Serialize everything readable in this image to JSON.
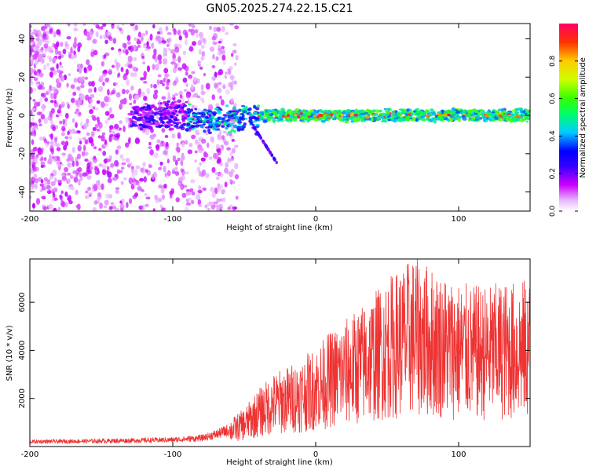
{
  "title": "GN05.2025.274.22.15.C21",
  "chart_data": [
    {
      "type": "heatmap",
      "xlabel": "Height of straight line (km)",
      "ylabel": "Frequency (Hz)",
      "xlim": [
        -200,
        150
      ],
      "ylim": [
        -50,
        48
      ],
      "xticks": [
        "-200",
        "-100",
        "0",
        "100"
      ],
      "xtick_values": [
        -200,
        -100,
        0,
        100
      ],
      "yticks": [
        "-40",
        "-20",
        "0",
        "20",
        "40"
      ],
      "ytick_values": [
        -40,
        -20,
        0,
        20,
        40
      ],
      "colorbar": {
        "label": "Normalized spectral amplitude",
        "range": [
          0,
          1
        ],
        "ticks": [
          "0.0",
          "0.2",
          "0.4",
          "0.6",
          "0.8"
        ],
        "tick_values": [
          0,
          0.2,
          0.4,
          0.6,
          0.8
        ],
        "colors": [
          "#ffffff",
          "#cc00ff",
          "#0000ff",
          "#00ffff",
          "#00ff00",
          "#ffff00",
          "#ff0000",
          "#ff0066"
        ]
      },
      "features": {
        "broadband_noise_region_km": [
          -200,
          -60
        ],
        "signal_band_center_hz": 0,
        "signal_band_start_km": -130,
        "descending_tail_end": {
          "x": -27,
          "y": -25
        }
      }
    },
    {
      "type": "line",
      "xlabel": "Height of straight line (km)",
      "ylabel": "SNR (10 * v/v)",
      "xlim": [
        -200,
        150
      ],
      "ylim": [
        0,
        7800
      ],
      "xticks": [
        "-200",
        "-100",
        "0",
        "100"
      ],
      "xtick_values": [
        -200,
        -100,
        0,
        100
      ],
      "yticks": [
        "2000",
        "4000",
        "6000"
      ],
      "ytick_values": [
        2000,
        4000,
        6000
      ],
      "color": "#ee3333",
      "envelope": [
        {
          "x": -200,
          "y": 200
        },
        {
          "x": -150,
          "y": 230
        },
        {
          "x": -100,
          "y": 280
        },
        {
          "x": -80,
          "y": 350
        },
        {
          "x": -70,
          "y": 500
        },
        {
          "x": -60,
          "y": 700
        },
        {
          "x": -50,
          "y": 1000
        },
        {
          "x": -40,
          "y": 1500
        },
        {
          "x": -30,
          "y": 1900
        },
        {
          "x": -20,
          "y": 2100
        },
        {
          "x": -10,
          "y": 2300
        },
        {
          "x": 0,
          "y": 2600
        },
        {
          "x": 10,
          "y": 3000
        },
        {
          "x": 20,
          "y": 3300
        },
        {
          "x": 30,
          "y": 3600
        },
        {
          "x": 40,
          "y": 4000
        },
        {
          "x": 50,
          "y": 4400
        },
        {
          "x": 60,
          "y": 4700
        },
        {
          "x": 70,
          "y": 5000
        },
        {
          "x": 80,
          "y": 4700
        },
        {
          "x": 90,
          "y": 4500
        },
        {
          "x": 100,
          "y": 4300
        },
        {
          "x": 110,
          "y": 4200
        },
        {
          "x": 120,
          "y": 4200
        },
        {
          "x": 130,
          "y": 4300
        },
        {
          "x": 140,
          "y": 4300
        },
        {
          "x": 150,
          "y": 4400
        }
      ]
    }
  ]
}
